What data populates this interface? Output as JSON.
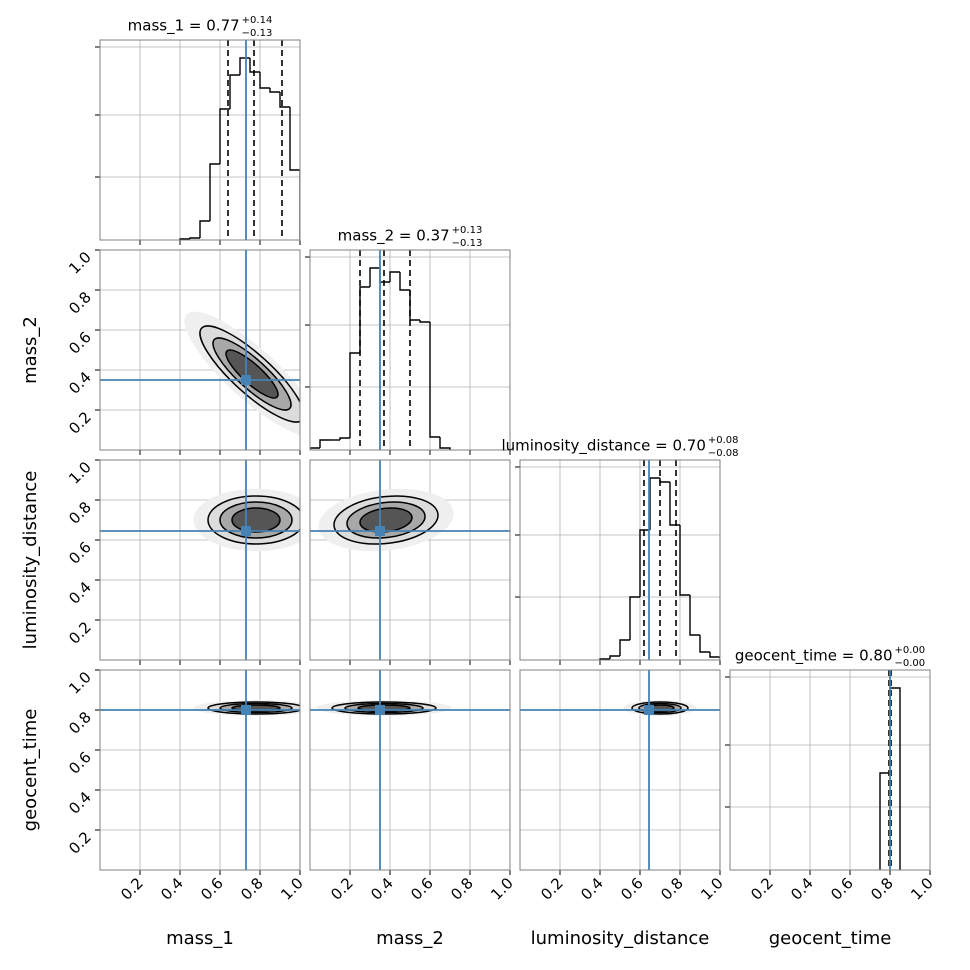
{
  "chart_data": {
    "type": "corner",
    "parameters": [
      "mass_1",
      "mass_2",
      "luminosity_distance",
      "geocent_time"
    ],
    "titles": [
      {
        "text": "mass_1 = 0.77",
        "plus": "+0.14",
        "minus": "−0.13"
      },
      {
        "text": "mass_2 = 0.37",
        "plus": "+0.13",
        "minus": "−0.13"
      },
      {
        "text": "luminosity_distance = 0.70",
        "plus": "+0.08",
        "minus": "−0.08"
      },
      {
        "text": "geocent_time = 0.80",
        "plus": "+0.00",
        "minus": "−0.00"
      }
    ],
    "lim": [
      0,
      1
    ],
    "ticks": [
      0.2,
      0.4,
      0.6,
      0.8,
      {
        "value": 1,
        "label": "1.0"
      }
    ],
    "grid": true,
    "hist_color": "#000000",
    "truth_color": "#4682b4",
    "truths": [
      0.73,
      0.35,
      0.645,
      0.8
    ],
    "quantiles": [
      [
        0.64,
        0.77,
        0.91
      ],
      [
        0.25,
        0.37,
        0.5
      ],
      [
        0.62,
        0.7,
        0.78
      ],
      [
        0.795,
        0.8,
        0.805
      ]
    ],
    "hist_ylim": [
      0,
      200
    ],
    "hist_yticks": [
      63,
      125,
      193
    ],
    "histograms": [
      {
        "bins": [
          0.4,
          0.45,
          0.5,
          0.55,
          0.6,
          0.65,
          0.7,
          0.75,
          0.8,
          0.85,
          0.9,
          0.95,
          1.0
        ],
        "values": [
          1,
          2,
          19,
          76,
          131,
          165,
          182,
          168,
          152,
          148,
          133,
          70
        ]
      },
      {
        "bins": [
          0.0,
          0.05,
          0.1,
          0.15,
          0.2,
          0.25,
          0.3,
          0.35,
          0.4,
          0.45,
          0.5,
          0.55,
          0.6,
          0.65,
          0.7
        ],
        "values": [
          2,
          10,
          10,
          12,
          97,
          163,
          182,
          168,
          178,
          160,
          130,
          128,
          13,
          2
        ]
      },
      {
        "bins": [
          0.4,
          0.45,
          0.5,
          0.55,
          0.6,
          0.65,
          0.7,
          0.75,
          0.8,
          0.85,
          0.9,
          0.95,
          1.0
        ],
        "values": [
          1,
          4,
          20,
          63,
          130,
          182,
          178,
          135,
          65,
          25,
          8,
          3
        ]
      },
      {
        "bins": [
          0.75,
          0.8,
          0.85
        ],
        "values": [
          97,
          182
        ]
      }
    ],
    "pairs": [
      {
        "x": 0,
        "y": 1,
        "mean": [
          0.76,
          0.38
        ],
        "std": [
          0.13,
          0.12
        ],
        "corr": -0.85
      },
      {
        "x": 0,
        "y": 2,
        "mean": [
          0.78,
          0.7
        ],
        "std": [
          0.12,
          0.06
        ],
        "corr": 0.0
      },
      {
        "x": 1,
        "y": 2,
        "mean": [
          0.38,
          0.7
        ],
        "std": [
          0.13,
          0.06
        ],
        "corr": 0.2
      },
      {
        "x": 0,
        "y": 3,
        "mean": [
          0.78,
          0.81
        ],
        "std": [
          0.12,
          0.015
        ],
        "corr": 0.0
      },
      {
        "x": 1,
        "y": 3,
        "mean": [
          0.37,
          0.81
        ],
        "std": [
          0.13,
          0.015
        ],
        "corr": 0.0
      },
      {
        "x": 2,
        "y": 3,
        "mean": [
          0.7,
          0.81
        ],
        "std": [
          0.07,
          0.015
        ],
        "corr": 0.0
      }
    ]
  }
}
